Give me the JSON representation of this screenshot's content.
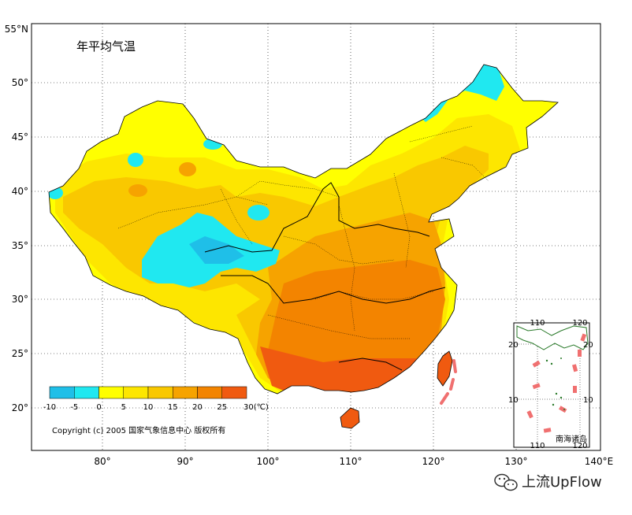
{
  "map": {
    "title": "年平均气温",
    "copyright": "Copyright (c) 2005 国家气象信息中心 版权所有",
    "y_ticks": [
      "55°N",
      "50°",
      "45°",
      "40°",
      "35°",
      "30°",
      "25°",
      "20°"
    ],
    "x_ticks": [
      "80°",
      "90°",
      "100°",
      "110°",
      "120°",
      "130°",
      "140°E"
    ],
    "legend": {
      "labels": [
        "-10",
        "-5",
        "0",
        "5",
        "10",
        "15",
        "20",
        "25",
        "30(℃)"
      ],
      "colors": [
        "#1fbfe8",
        "#20e8f0",
        "#ffff00",
        "#fde600",
        "#f9c800",
        "#f6a300",
        "#f38400",
        "#f05a10",
        "#ff3000"
      ]
    },
    "inset": {
      "title": "南海诸岛",
      "top_ticks": [
        "110",
        "120"
      ],
      "bottom_ticks": [
        "110",
        "120"
      ],
      "left_ticks": [
        "20",
        "10"
      ],
      "right_ticks": [
        "20",
        "10"
      ]
    }
  },
  "watermark": {
    "icon": "wechat-icon",
    "text": "上流UpFlow"
  }
}
